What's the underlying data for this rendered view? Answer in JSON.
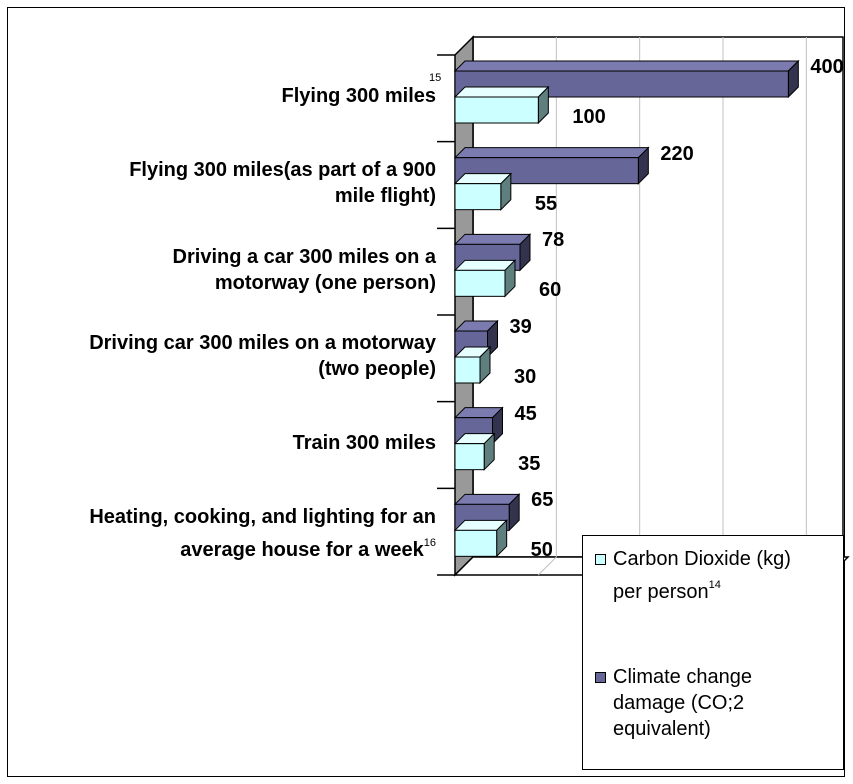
{
  "colors": {
    "co2_front": "#ccffff",
    "co2_top": "#e6ffff",
    "co2_side": "#5f7f7f",
    "climate_front": "#666699",
    "climate_top": "#7b7bb0",
    "climate_side": "#33334d",
    "wall": "#999999",
    "grid": "#c0c0c0"
  },
  "chart_data": {
    "type": "bar",
    "orientation": "horizontal",
    "categories": [
      "Flying 300 miles",
      "Flying 300 miles(as part of a 900 mile flight)",
      "Driving a car 300 miles on a motorway (one person)",
      "Driving car 300 miles on a motorway (two people)",
      "Train 300 miles",
      "Heating, cooking, and lighting for an average house for a week"
    ],
    "category_lines": [
      [
        "Flying 300 miles"
      ],
      [
        "Flying 300 miles(as part of a 900",
        "mile flight)"
      ],
      [
        "Driving a car 300 miles on a",
        "motorway (one person)"
      ],
      [
        "Driving car 300 miles on a motorway",
        "(two people)"
      ],
      [
        "Train 300 miles"
      ],
      [
        "Heating, cooking, and lighting for an",
        "average house for a week"
      ]
    ],
    "footnotes": [
      "15",
      "",
      "",
      "",
      "",
      "16"
    ],
    "series": [
      {
        "name": "Carbon Dioxide (kg) per person",
        "footnote": "14",
        "values": [
          100,
          55,
          60,
          30,
          35,
          50
        ]
      },
      {
        "name": "Climate change damage (CO;2 equivalent)",
        "footnote": "",
        "values": [
          400,
          220,
          78,
          39,
          45,
          65
        ]
      }
    ],
    "xlim": [
      0,
      450
    ],
    "grid": true,
    "legend_position": "bottom-right",
    "data_labels": true
  },
  "legend": {
    "items": [
      {
        "lines": [
          "Carbon Dioxide (kg)",
          "per person"
        ],
        "footnote": "14"
      },
      {
        "lines": [
          "Climate change",
          "damage (CO;2",
          "equivalent)"
        ],
        "footnote": ""
      }
    ]
  }
}
